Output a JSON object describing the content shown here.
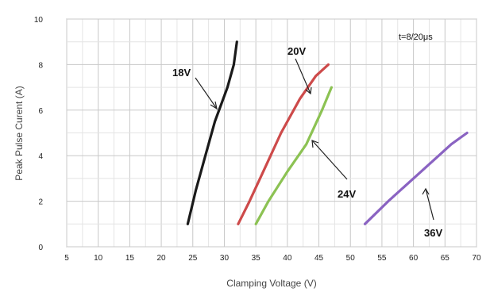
{
  "chart_data": {
    "type": "line",
    "xlabel": "Clamping Voltage (V)",
    "ylabel": "Peak  Pulse Curent (A)",
    "xlim": [
      5,
      70
    ],
    "ylim": [
      0,
      10
    ],
    "xticks": [
      5,
      10,
      15,
      20,
      25,
      30,
      35,
      40,
      45,
      50,
      55,
      60,
      65,
      70
    ],
    "yticks": [
      0,
      2,
      4,
      6,
      8,
      10
    ],
    "grid": true,
    "annotation_condition": "t=8/20μs",
    "series": [
      {
        "name": "18V",
        "color": "#1a1a1a",
        "points": [
          [
            24.2,
            1
          ],
          [
            25.5,
            2.5
          ],
          [
            27,
            4
          ],
          [
            28.5,
            5.5
          ],
          [
            30.5,
            7
          ],
          [
            31.5,
            8
          ],
          [
            32,
            9
          ]
        ]
      },
      {
        "name": "20V",
        "color": "#cd4a4a",
        "points": [
          [
            32.2,
            1
          ],
          [
            34,
            2
          ],
          [
            36.5,
            3.5
          ],
          [
            39,
            5
          ],
          [
            42,
            6.5
          ],
          [
            44.5,
            7.5
          ],
          [
            46.5,
            8
          ]
        ]
      },
      {
        "name": "24V",
        "color": "#8cc253",
        "points": [
          [
            35,
            1
          ],
          [
            37,
            2
          ],
          [
            40,
            3.3
          ],
          [
            43,
            4.5
          ],
          [
            45.5,
            6
          ],
          [
            47,
            7
          ]
        ]
      },
      {
        "name": "36V",
        "color": "#8a63c2",
        "points": [
          [
            52.3,
            1
          ],
          [
            56,
            2
          ],
          [
            60,
            3
          ],
          [
            64,
            4
          ],
          [
            66,
            4.5
          ],
          [
            68.5,
            5
          ]
        ]
      }
    ]
  }
}
